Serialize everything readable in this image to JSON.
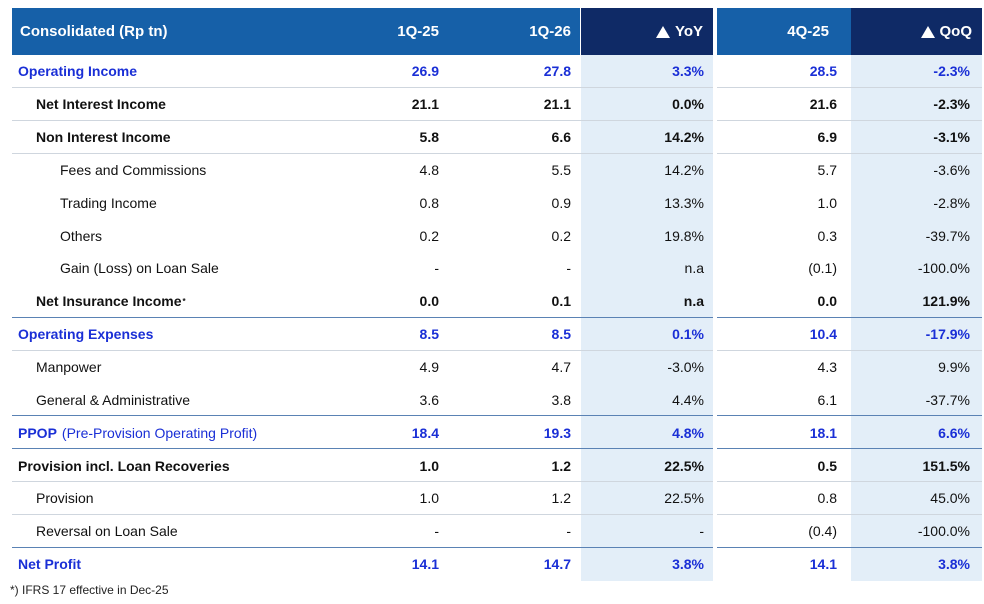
{
  "header": {
    "label": "Consolidated (Rp tn)",
    "col1": "1Q-25",
    "col2": "1Q-26",
    "col3": "YoY",
    "col4": "4Q-25",
    "col5": "QoQ"
  },
  "rows": [
    {
      "label": "Operating Income",
      "v1": "26.9",
      "v2": "27.8",
      "v3": "3.3%",
      "v4": "28.5",
      "v5": "-2.3%"
    },
    {
      "label": "Net Interest Income",
      "v1": "21.1",
      "v2": "21.1",
      "v3": "0.0%",
      "v4": "21.6",
      "v5": "-2.3%"
    },
    {
      "label": "Non Interest Income",
      "v1": "5.8",
      "v2": "6.6",
      "v3": "14.2%",
      "v4": "6.9",
      "v5": "-3.1%"
    },
    {
      "label": "Fees and Commissions",
      "v1": "4.8",
      "v2": "5.5",
      "v3": "14.2%",
      "v4": "5.7",
      "v5": "-3.6%"
    },
    {
      "label": "Trading Income",
      "v1": "0.8",
      "v2": "0.9",
      "v3": "13.3%",
      "v4": "1.0",
      "v5": "-2.8%"
    },
    {
      "label": "Others",
      "v1": "0.2",
      "v2": "0.2",
      "v3": "19.8%",
      "v4": "0.3",
      "v5": "-39.7%"
    },
    {
      "label": "Gain (Loss) on Loan Sale",
      "v1": "-",
      "v2": "-",
      "v3": "n.a",
      "v4": "(0.1)",
      "v5": "-100.0%"
    },
    {
      "label": "Net Insurance Income",
      "sup": "*",
      "v1": "0.0",
      "v2": "0.1",
      "v3": "n.a",
      "v4": "0.0",
      "v5": "121.9%"
    },
    {
      "label": "Operating Expenses",
      "v1": "8.5",
      "v2": "8.5",
      "v3": "0.1%",
      "v4": "10.4",
      "v5": "-17.9%"
    },
    {
      "label": "Manpower",
      "v1": "4.9",
      "v2": "4.7",
      "v3": "-3.0%",
      "v4": "4.3",
      "v5": "9.9%"
    },
    {
      "label": "General & Administrative",
      "v1": "3.6",
      "v2": "3.8",
      "v3": "4.4%",
      "v4": "6.1",
      "v5": "-37.7%"
    },
    {
      "label": "PPOP",
      "label_suffix": "(Pre-Provision Operating Profit)",
      "v1": "18.4",
      "v2": "19.3",
      "v3": "4.8%",
      "v4": "18.1",
      "v5": "6.6%"
    },
    {
      "label": "Provision incl. Loan Recoveries",
      "v1": "1.0",
      "v2": "1.2",
      "v3": "22.5%",
      "v4": "0.5",
      "v5": "151.5%"
    },
    {
      "label": "Provision",
      "v1": "1.0",
      "v2": "1.2",
      "v3": "22.5%",
      "v4": "0.8",
      "v5": "45.0%"
    },
    {
      "label": "Reversal on Loan Sale",
      "v1": "-",
      "v2": "-",
      "v3": "-",
      "v4": "(0.4)",
      "v5": "-100.0%"
    },
    {
      "label": "Net Profit",
      "v1": "14.1",
      "v2": "14.7",
      "v3": "3.8%",
      "v4": "14.1",
      "v5": "3.8%"
    }
  ],
  "footnote": "*) IFRS 17 effective in Dec-25",
  "colors": {
    "header_blue": "#1660a8",
    "header_navy": "#0f2a66",
    "shade": "#e3eef8",
    "highlight_text": "#1a2fd6"
  }
}
